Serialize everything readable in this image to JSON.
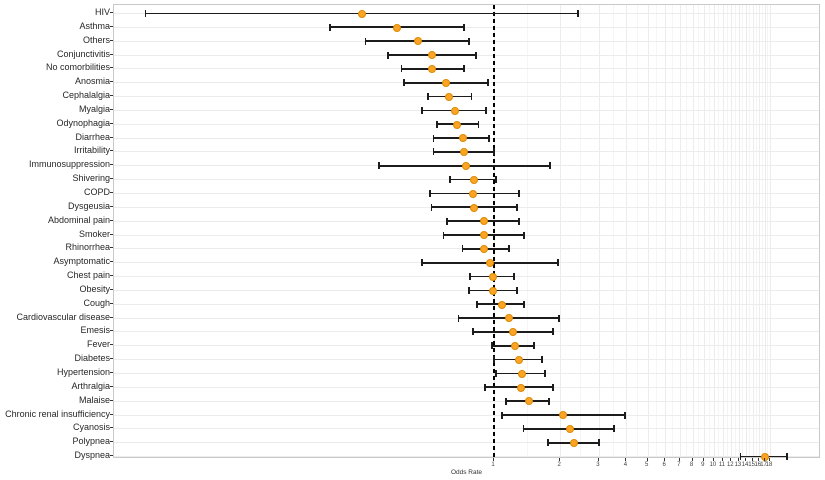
{
  "figure": {
    "background": "#ffffff",
    "panel_border_color": "#c9c9c9",
    "grid_major_color": "#ececec",
    "grid_minor_color": "#f5f5f5",
    "point_fill": "#FBA425",
    "point_stroke": "#DD8A00",
    "errorbar_color": "#1c1c1c",
    "reference_line_color": "#000000",
    "axis_text_color": "#333333"
  },
  "chart_data": {
    "type": "scatter",
    "subtype": "forest_plot_odds_ratios",
    "title": "",
    "xlabel": "Odds Rate",
    "ylabel": "",
    "x_scale": "log",
    "x_ticks": [
      1,
      2,
      3,
      4,
      5,
      6,
      7,
      8,
      9,
      10,
      11,
      12,
      13,
      14,
      15,
      16,
      17,
      18
    ],
    "x_range_approx": [
      0.02,
      30
    ],
    "reference_line_x": 1,
    "grid": "major-and-minor",
    "legend_position": "none",
    "rows": [
      {
        "label": "HIV",
        "or": 0.25,
        "ci_low": 0.026,
        "ci_high": 2.41
      },
      {
        "label": "Asthma",
        "or": 0.36,
        "ci_low": 0.18,
        "ci_high": 0.73
      },
      {
        "label": "Others",
        "or": 0.45,
        "ci_low": 0.26,
        "ci_high": 0.77
      },
      {
        "label": "Conjunctivitis",
        "or": 0.52,
        "ci_low": 0.33,
        "ci_high": 0.83
      },
      {
        "label": "No comorbilities",
        "or": 0.52,
        "ci_low": 0.38,
        "ci_high": 0.73
      },
      {
        "label": "Anosmia",
        "or": 0.6,
        "ci_low": 0.39,
        "ci_high": 0.94
      },
      {
        "label": "Cephalalgia",
        "or": 0.62,
        "ci_low": 0.5,
        "ci_high": 0.79
      },
      {
        "label": "Myalgia",
        "or": 0.66,
        "ci_low": 0.47,
        "ci_high": 0.92
      },
      {
        "label": "Odynophagia",
        "or": 0.68,
        "ci_low": 0.55,
        "ci_high": 0.85
      },
      {
        "label": "Diarrhea",
        "or": 0.72,
        "ci_low": 0.53,
        "ci_high": 0.95
      },
      {
        "label": "Irritability",
        "or": 0.73,
        "ci_low": 0.53,
        "ci_high": 1.0
      },
      {
        "label": "Immunosuppression",
        "or": 0.74,
        "ci_low": 0.3,
        "ci_high": 1.8
      },
      {
        "label": "Shivering",
        "or": 0.81,
        "ci_low": 0.63,
        "ci_high": 1.02
      },
      {
        "label": "COPD",
        "or": 0.8,
        "ci_low": 0.51,
        "ci_high": 1.3
      },
      {
        "label": "Dysgeusia",
        "or": 0.81,
        "ci_low": 0.52,
        "ci_high": 1.27
      },
      {
        "label": "Abdominal pain",
        "or": 0.9,
        "ci_low": 0.61,
        "ci_high": 1.3
      },
      {
        "label": "Smoker",
        "or": 0.9,
        "ci_low": 0.59,
        "ci_high": 1.37
      },
      {
        "label": "Rhinorrhea",
        "or": 0.9,
        "ci_low": 0.72,
        "ci_high": 1.17
      },
      {
        "label": "Asymptomatic",
        "or": 0.96,
        "ci_low": 0.47,
        "ci_high": 1.95
      },
      {
        "label": "Chest pain",
        "or": 0.99,
        "ci_low": 0.78,
        "ci_high": 1.23
      },
      {
        "label": "Obesity",
        "or": 0.99,
        "ci_low": 0.77,
        "ci_high": 1.27
      },
      {
        "label": "Cough",
        "or": 1.08,
        "ci_low": 0.84,
        "ci_high": 1.37
      },
      {
        "label": "Cardiovascular disease",
        "or": 1.17,
        "ci_low": 0.69,
        "ci_high": 1.98
      },
      {
        "label": "Emesis",
        "or": 1.22,
        "ci_low": 0.8,
        "ci_high": 1.86
      },
      {
        "label": "Fever",
        "or": 1.24,
        "ci_low": 0.98,
        "ci_high": 1.52
      },
      {
        "label": "Diabetes",
        "or": 1.29,
        "ci_low": 1.0,
        "ci_high": 1.65
      },
      {
        "label": "Hypertension",
        "or": 1.33,
        "ci_low": 1.02,
        "ci_high": 1.71
      },
      {
        "label": "Arthralgia",
        "or": 1.32,
        "ci_low": 0.91,
        "ci_high": 1.86
      },
      {
        "label": "Malaise",
        "or": 1.44,
        "ci_low": 1.13,
        "ci_high": 1.78
      },
      {
        "label": "Chronic renal insufficiency",
        "or": 2.06,
        "ci_low": 1.09,
        "ci_high": 3.95
      },
      {
        "label": "Cyanosis",
        "or": 2.2,
        "ci_low": 1.36,
        "ci_high": 3.52
      },
      {
        "label": "Polypnea",
        "or": 2.3,
        "ci_low": 1.76,
        "ci_high": 3.0
      },
      {
        "label": "Dyspnea",
        "or": 17.0,
        "ci_low": 13.2,
        "ci_high": 21.5
      }
    ]
  }
}
